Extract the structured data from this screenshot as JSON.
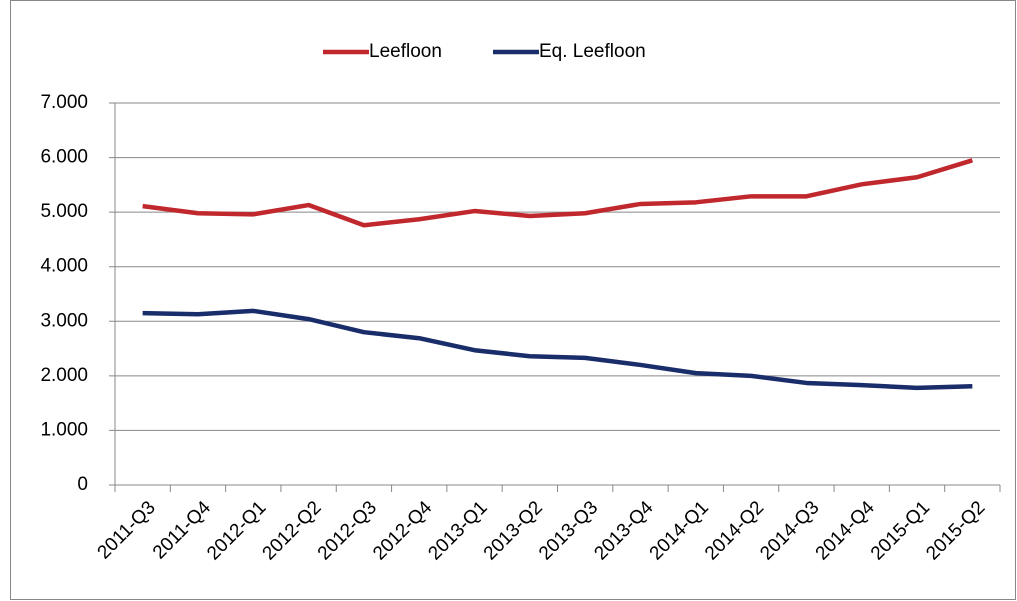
{
  "chart_data": {
    "type": "line",
    "categories": [
      "2011-Q3",
      "2011-Q4",
      "2012-Q1",
      "2012-Q2",
      "2012-Q3",
      "2012-Q4",
      "2013-Q1",
      "2013-Q2",
      "2013-Q3",
      "2013-Q4",
      "2014-Q1",
      "2014-Q2",
      "2014-Q3",
      "2014-Q4",
      "2015-Q1",
      "2015-Q2"
    ],
    "series": [
      {
        "name": "Leefloon",
        "color": "#c0282d",
        "values": [
          5110,
          4980,
          4960,
          5130,
          4760,
          4870,
          5020,
          4930,
          4980,
          5150,
          5180,
          5290,
          5290,
          5510,
          5640,
          5950
        ]
      },
      {
        "name": "Eq. Leefloon",
        "color": "#1a2d6b",
        "values": [
          3150,
          3130,
          3190,
          3040,
          2800,
          2690,
          2470,
          2360,
          2330,
          2200,
          2050,
          2000,
          1870,
          1830,
          1780,
          1810
        ]
      }
    ],
    "ylim": [
      0,
      7000
    ],
    "yticks": [
      0,
      {
        "value": 1000,
        "label": "1.000"
      },
      {
        "value": 2000,
        "label": "2.000"
      },
      {
        "value": 3000,
        "label": "3.000"
      },
      {
        "value": 4000,
        "label": "4.000"
      },
      {
        "value": 5000,
        "label": "5.000"
      },
      {
        "value": 6000,
        "label": "6.000"
      },
      {
        "value": 7000,
        "label": "7.000"
      }
    ],
    "grid": true,
    "legend": "top"
  }
}
